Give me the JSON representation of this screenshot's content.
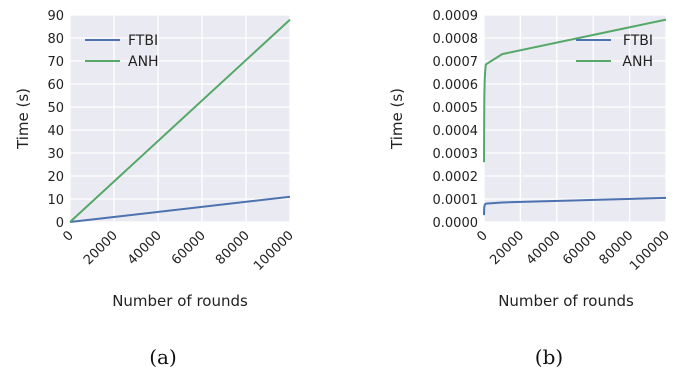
{
  "colors": {
    "FTBI": "#4c72b0",
    "ANH": "#55a868",
    "plot_bg": "#eaeaf2",
    "grid": "#ffffff"
  },
  "chart_data": [
    {
      "type": "line",
      "caption": "(a)",
      "xlabel": "Number of rounds",
      "ylabel": "Time (s)",
      "xlim": [
        0,
        100000
      ],
      "ylim": [
        0,
        90
      ],
      "xticks": [
        0,
        20000,
        40000,
        60000,
        80000,
        100000
      ],
      "xtick_labels": [
        "0",
        "20000",
        "40000",
        "60000",
        "80000",
        "100000"
      ],
      "yticks": [
        0,
        10,
        20,
        30,
        40,
        50,
        60,
        70,
        80,
        90
      ],
      "ytick_labels": [
        "0",
        "10",
        "20",
        "30",
        "40",
        "50",
        "60",
        "70",
        "80",
        "90"
      ],
      "legend_position": "upper-left",
      "series": [
        {
          "name": "FTBI",
          "color_key": "FTBI",
          "x": [
            0,
            10000,
            100000
          ],
          "y": [
            0,
            1.1,
            11
          ]
        },
        {
          "name": "ANH",
          "color_key": "ANH",
          "x": [
            0,
            10000,
            100000
          ],
          "y": [
            0,
            8.8,
            88
          ]
        }
      ]
    },
    {
      "type": "line",
      "caption": "(b)",
      "xlabel": "Number of rounds",
      "ylabel": "Time (s)",
      "xlim": [
        0,
        100000
      ],
      "ylim": [
        0,
        0.0009
      ],
      "xticks": [
        0,
        20000,
        40000,
        60000,
        80000,
        100000
      ],
      "xtick_labels": [
        "0",
        "20000",
        "40000",
        "60000",
        "80000",
        "100000"
      ],
      "yticks": [
        0,
        0.0001,
        0.0002,
        0.0003,
        0.0004,
        0.0005,
        0.0006,
        0.0007,
        0.0008,
        0.0009
      ],
      "ytick_labels": [
        "0.0000",
        "0.0001",
        "0.0002",
        "0.0003",
        "0.0004",
        "0.0005",
        "0.0006",
        "0.0007",
        "0.0008",
        "0.0009"
      ],
      "legend_position": "upper-right",
      "series": [
        {
          "name": "FTBI",
          "color_key": "FTBI",
          "x": [
            10,
            100,
            300,
            600,
            1000,
            10000,
            100000
          ],
          "y": [
            3e-05,
            6e-05,
            7.2e-05,
            7.7e-05,
            8e-05,
            8.5e-05,
            0.000105
          ]
        },
        {
          "name": "ANH",
          "color_key": "ANH",
          "x": [
            10,
            100,
            200,
            400,
            700,
            1000,
            2000,
            10000,
            100000
          ],
          "y": [
            0.00026,
            0.00045,
            0.00055,
            0.00062,
            0.00066,
            0.000685,
            0.00069,
            0.00073,
            0.00088
          ]
        }
      ]
    }
  ]
}
